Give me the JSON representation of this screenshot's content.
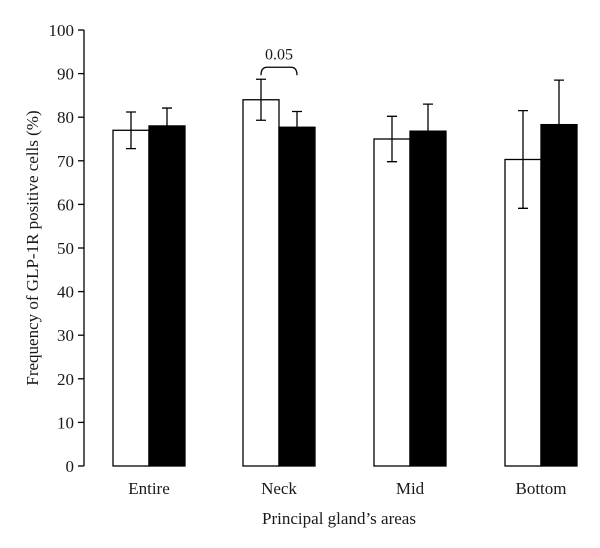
{
  "chart_data": {
    "type": "bar",
    "title": "",
    "xlabel": "Principal gland’s areas",
    "ylabel": "Frequency of GLP-1R positive cells (%)",
    "ylim": [
      0,
      100
    ],
    "yticks": [
      "0",
      "10",
      "20",
      "30",
      "40",
      "50",
      "60",
      "70",
      "80",
      "90",
      "100"
    ],
    "categories": [
      "Entire",
      "Neck",
      "Mid",
      "Bottom"
    ],
    "series": [
      {
        "color": "#ffffff",
        "values": [
          77,
          84,
          75,
          70.3
        ],
        "errors": [
          4.2,
          4.7,
          5.2,
          11.2
        ]
      },
      {
        "color": "#000000",
        "values": [
          78,
          77.7,
          76.8,
          78.3
        ],
        "errors": [
          4.1,
          3.6,
          6.2,
          10.2
        ]
      }
    ],
    "annotation": {
      "text": "0.05",
      "category": "Neck"
    },
    "grid": false,
    "legend": "none"
  }
}
